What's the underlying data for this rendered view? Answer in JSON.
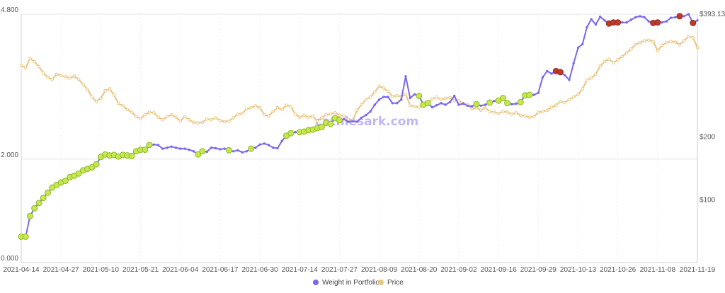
{
  "watermark": "cathiesark.com",
  "chart_data": {
    "type": "line",
    "title": "",
    "xlabel": "",
    "ylabel": "",
    "x_ticks": [
      "2021-04-14",
      "2021-04-27",
      "2021-05-10",
      "2021-05-21",
      "2021-06-04",
      "2021-06-17",
      "2021-06-30",
      "2021-07-14",
      "2021-07-27",
      "2021-08-09",
      "2021-08-20",
      "2021-09-02",
      "2021-09-16",
      "2021-09-29",
      "2021-10-13",
      "2021-10-26",
      "2021-11-08",
      "2021-11-19"
    ],
    "x_range": [
      0,
      153
    ],
    "y_left": {
      "ticks": [
        "0.000",
        "2.000",
        "4.800"
      ],
      "tick_values": [
        0,
        2,
        4.8
      ],
      "range": [
        0,
        4.8
      ]
    },
    "y_right": {
      "ticks": [
        "$100",
        "$200",
        "$393.13"
      ],
      "tick_values": [
        100,
        200,
        393.13
      ],
      "range": [
        0,
        393.13
      ]
    },
    "grid": true,
    "legend_position": "bottom",
    "colors": {
      "weight": "#7b68ee",
      "price": "#e9c47e",
      "buy": "#c5e84f",
      "sell": "#c0392b"
    },
    "series": [
      {
        "name": "Weight in Portfolio",
        "axis": "left",
        "x": [
          0,
          1,
          2,
          3,
          4,
          5,
          6,
          7,
          8,
          9,
          10,
          11,
          12,
          13,
          14,
          15,
          16,
          17,
          18,
          19,
          20,
          21,
          22,
          23,
          24,
          25,
          26,
          27,
          28,
          29,
          30,
          31,
          32,
          33,
          34,
          35,
          36,
          37,
          38,
          39,
          40,
          41,
          42,
          43,
          44,
          45,
          46,
          47,
          48,
          49,
          50,
          51,
          52,
          53,
          54,
          55,
          56,
          57,
          58,
          59,
          60,
          61,
          62,
          63,
          64,
          65,
          66,
          67,
          68,
          69,
          70,
          71,
          72,
          73,
          74,
          75,
          76,
          77,
          78,
          79,
          80,
          81,
          82,
          83,
          84,
          85,
          86,
          87,
          88,
          89,
          90,
          91,
          92,
          93,
          94,
          95,
          96,
          97,
          98,
          99,
          100,
          101,
          102,
          103,
          104,
          105,
          106,
          107,
          108,
          109,
          110,
          111,
          112,
          113,
          114,
          115,
          116,
          117,
          118,
          119,
          120,
          121,
          122,
          123,
          124,
          125,
          126,
          127,
          128,
          129,
          130,
          131,
          132,
          133,
          134,
          135,
          136,
          137,
          138,
          139,
          140,
          141,
          142,
          143,
          144,
          145,
          146,
          147,
          148,
          149,
          150,
          151,
          152,
          153
        ],
        "values": [
          0.5,
          0.5,
          0.9,
          1.05,
          1.15,
          1.25,
          1.35,
          1.45,
          1.5,
          1.55,
          1.58,
          1.65,
          1.68,
          1.72,
          1.78,
          1.81,
          1.84,
          1.9,
          2.04,
          2.09,
          2.07,
          2.08,
          2.05,
          2.08,
          2.07,
          2.06,
          2.15,
          2.18,
          2.18,
          2.27,
          2.28,
          2.27,
          2.2,
          2.22,
          2.24,
          2.22,
          2.2,
          2.2,
          2.18,
          2.15,
          2.09,
          2.15,
          2.14,
          2.22,
          2.21,
          2.19,
          2.2,
          2.17,
          2.15,
          2.17,
          2.13,
          2.15,
          2.2,
          2.22,
          2.28,
          2.3,
          2.27,
          2.22,
          2.21,
          2.35,
          2.45,
          2.5,
          2.52,
          2.52,
          2.53,
          2.56,
          2.57,
          2.6,
          2.62,
          2.7,
          2.68,
          2.79,
          2.75,
          2.77,
          2.72,
          2.73,
          2.72,
          2.8,
          2.85,
          2.92,
          3.05,
          3.15,
          3.2,
          3.2,
          3.08,
          3.08,
          3.15,
          3.6,
          3.18,
          3.25,
          3.22,
          3.05,
          3.08,
          3.0,
          3.04,
          3.08,
          3.05,
          3.1,
          3.22,
          3.05,
          3.07,
          3.03,
          3.02,
          3.06,
          3.03,
          3.05,
          3.09,
          3.12,
          3.13,
          3.18,
          3.08,
          3.06,
          3.07,
          3.1,
          3.23,
          3.24,
          3.24,
          3.28,
          3.58,
          3.7,
          3.65,
          3.7,
          3.68,
          3.62,
          3.53,
          3.85,
          4.15,
          4.22,
          4.55,
          4.7,
          4.6,
          4.75,
          4.68,
          4.62,
          4.64,
          4.64,
          4.64,
          4.64,
          4.69,
          4.74,
          4.76,
          4.74,
          4.66,
          4.63,
          4.64,
          4.64,
          4.66,
          4.73,
          4.74,
          4.76,
          4.76,
          4.8,
          4.63,
          4.68
        ]
      },
      {
        "name": "Price",
        "axis": "right",
        "x": [
          0,
          1,
          2,
          3,
          4,
          5,
          6,
          7,
          8,
          9,
          10,
          11,
          12,
          13,
          14,
          15,
          16,
          17,
          18,
          19,
          20,
          21,
          22,
          23,
          24,
          25,
          26,
          27,
          28,
          29,
          30,
          31,
          32,
          33,
          34,
          35,
          36,
          37,
          38,
          39,
          40,
          41,
          42,
          43,
          44,
          45,
          46,
          47,
          48,
          49,
          50,
          51,
          52,
          53,
          54,
          55,
          56,
          57,
          58,
          59,
          60,
          61,
          62,
          63,
          64,
          65,
          66,
          67,
          68,
          69,
          70,
          71,
          72,
          73,
          74,
          75,
          76,
          77,
          78,
          79,
          80,
          81,
          82,
          83,
          84,
          85,
          86,
          87,
          88,
          89,
          90,
          91,
          92,
          93,
          94,
          95,
          96,
          97,
          98,
          99,
          100,
          101,
          102,
          103,
          104,
          105,
          106,
          107,
          108,
          109,
          110,
          111,
          112,
          113,
          114,
          115,
          116,
          117,
          118,
          119,
          120,
          121,
          122,
          123,
          124,
          125,
          126,
          127,
          128,
          129,
          130,
          131,
          132,
          133,
          134,
          135,
          136,
          137,
          138,
          139,
          140,
          141,
          142,
          143,
          144,
          145,
          146,
          147,
          148,
          149,
          150,
          151,
          152,
          153
        ],
        "values": [
          312,
          308,
          323,
          318,
          310,
          300,
          293,
          290,
          298,
          296,
          294,
          292,
          295,
          290,
          282,
          274,
          262,
          255,
          260,
          272,
          275,
          265,
          252,
          248,
          242,
          238,
          231,
          228,
          234,
          238,
          237,
          230,
          226,
          231,
          234,
          230,
          224,
          231,
          226,
          222,
          221,
          222,
          227,
          226,
          229,
          225,
          223,
          224,
          229,
          235,
          236,
          243,
          245,
          248,
          245,
          234,
          232,
          239,
          245,
          242,
          249,
          247,
          235,
          230,
          233,
          230,
          232,
          224,
          229,
          234,
          235,
          237,
          233,
          232,
          227,
          225,
          241,
          250,
          258,
          262,
          270,
          279,
          276,
          271,
          263,
          264,
          263,
          266,
          249,
          247,
          246,
          249,
          253,
          259,
          262,
          258,
          260,
          261,
          256,
          256,
          252,
          250,
          243,
          245,
          241,
          245,
          239,
          238,
          236,
          239,
          238,
          235,
          237,
          233,
          232,
          230,
          231,
          238,
          239,
          241,
          246,
          249,
          255,
          253,
          258,
          262,
          266,
          275,
          289,
          292,
          298,
          311,
          318,
          322,
          316,
          321,
          326,
          332,
          338,
          345,
          348,
          351,
          352,
          350,
          335,
          344,
          348,
          350,
          349,
          345,
          351,
          358,
          356,
          340
        ]
      }
    ],
    "buy_markers": [
      0,
      1,
      2,
      3,
      4,
      5,
      6,
      7,
      8,
      9,
      10,
      11,
      12,
      13,
      14,
      15,
      16,
      17,
      18,
      19,
      20,
      21,
      22,
      23,
      24,
      25,
      26,
      27,
      28,
      29,
      40,
      41,
      47,
      52,
      60,
      61,
      63,
      64,
      65,
      66,
      67,
      68,
      69,
      70,
      71,
      72,
      90,
      91,
      92,
      103,
      106,
      108,
      109,
      110,
      113,
      114,
      115
    ],
    "sell_markers": [
      121,
      122,
      133,
      134,
      135,
      143,
      144,
      149,
      152
    ]
  },
  "legend": [
    {
      "label": "Weight in Portfolio",
      "swatch": "#7b68ee"
    },
    {
      "label": "Price",
      "swatch": "#e9c47e"
    }
  ]
}
